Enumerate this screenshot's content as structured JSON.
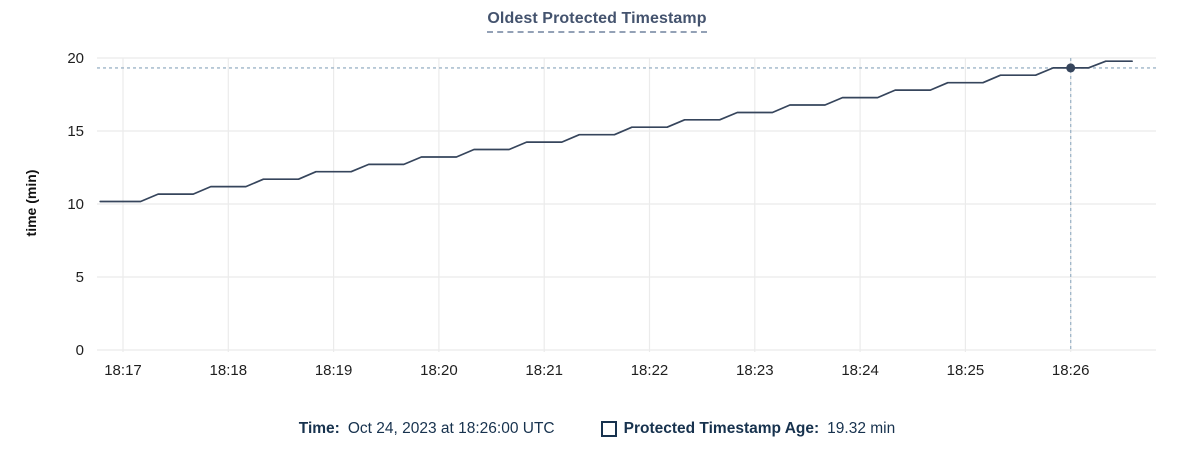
{
  "chart_data": {
    "type": "line",
    "title": "Oldest Protected Timestamp",
    "ylabel": "time (min)",
    "xlabel": "",
    "x_tick_labels": [
      "18:17",
      "18:18",
      "18:19",
      "18:20",
      "18:21",
      "18:22",
      "18:23",
      "18:24",
      "18:25",
      "18:26"
    ],
    "y_ticks": [
      0,
      5,
      10,
      15,
      20
    ],
    "ylim": [
      0,
      20
    ],
    "grid": true,
    "legend_position": "bottom",
    "x_unit": "seconds after 18:17:00",
    "series": [
      {
        "name": "Protected Timestamp Age",
        "unit": "min",
        "color": "#36455c",
        "points": [
          [
            -13,
            10.17
          ],
          [
            10,
            10.17
          ],
          [
            20,
            10.68
          ],
          [
            40,
            10.68
          ],
          [
            50,
            11.19
          ],
          [
            70,
            11.19
          ],
          [
            80,
            11.7
          ],
          [
            100,
            11.7
          ],
          [
            110,
            12.21
          ],
          [
            130,
            12.21
          ],
          [
            140,
            12.71
          ],
          [
            160,
            12.71
          ],
          [
            170,
            13.22
          ],
          [
            190,
            13.22
          ],
          [
            200,
            13.73
          ],
          [
            220,
            13.73
          ],
          [
            230,
            14.24
          ],
          [
            250,
            14.24
          ],
          [
            260,
            14.75
          ],
          [
            280,
            14.75
          ],
          [
            290,
            15.26
          ],
          [
            310,
            15.26
          ],
          [
            320,
            15.77
          ],
          [
            340,
            15.77
          ],
          [
            350,
            16.27
          ],
          [
            370,
            16.27
          ],
          [
            380,
            16.78
          ],
          [
            400,
            16.78
          ],
          [
            410,
            17.29
          ],
          [
            430,
            17.29
          ],
          [
            440,
            17.8
          ],
          [
            460,
            17.8
          ],
          [
            470,
            18.31
          ],
          [
            490,
            18.31
          ],
          [
            500,
            18.82
          ],
          [
            520,
            18.82
          ],
          [
            530,
            19.32
          ],
          [
            550,
            19.32
          ],
          [
            560,
            19.78
          ],
          [
            575,
            19.78
          ]
        ]
      }
    ],
    "crosshair": {
      "t_seconds": 540,
      "time": "18:26:00",
      "value": 19.32
    }
  },
  "legend": {
    "time_label": "Time:",
    "time_value": "Oct 24, 2023 at 18:26:00 UTC",
    "series_label": "Protected Timestamp Age:",
    "series_value": "19.32 min",
    "swatch_style": "hollow-square"
  },
  "colors": {
    "line": "#36455c",
    "dot": "#36455c",
    "crosshair": "#9eb5c8",
    "grid": "#ebebeb",
    "tick_text": "#1f1f1f",
    "title_text": "#44536e",
    "title_underline": "#93a1b6",
    "legend_text": "#17324e"
  }
}
